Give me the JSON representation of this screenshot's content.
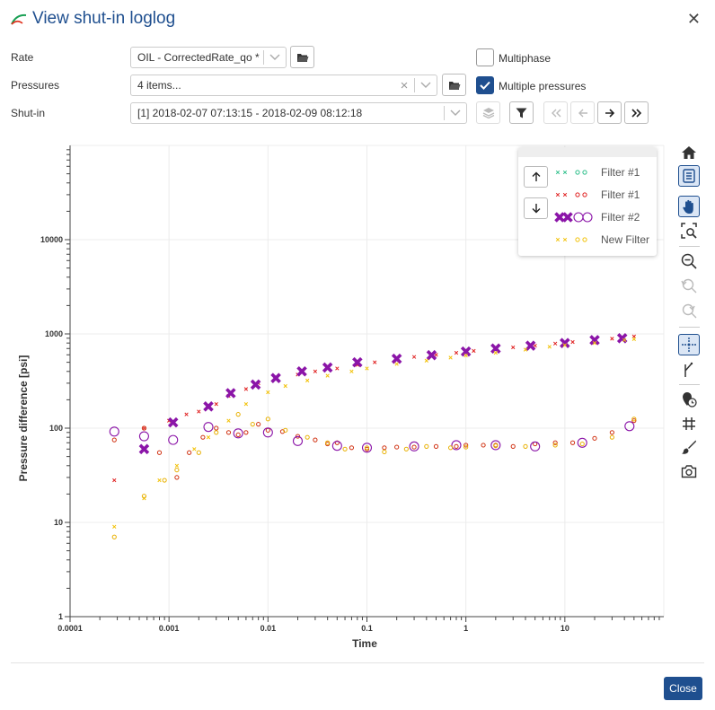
{
  "dialog": {
    "title": "View shut-in loglog",
    "close_label": "Close"
  },
  "form": {
    "rate_label": "Rate",
    "rate_value": "OIL - CorrectedRate_qo *",
    "pressures_label": "Pressures",
    "pressures_value": "4 items...",
    "shutin_label": "Shut-in",
    "shutin_value": "[1] 2018-02-07 07:13:15 - 2018-02-09 08:12:18",
    "multiphase_label": "Multiphase",
    "multiphase_checked": false,
    "multiple_pressures_label": "Multiple pressures",
    "multiple_pressures_checked": true
  },
  "legend": {
    "items": [
      {
        "label": "Filter #1",
        "color": "#2dbf8a",
        "style": "small"
      },
      {
        "label": "Filter #1",
        "color": "#e02020",
        "style": "small"
      },
      {
        "label": "Filter #2",
        "color": "#8b15a8",
        "style": "large"
      },
      {
        "label": "New Filter",
        "color": "#f2c20a",
        "style": "small"
      }
    ]
  },
  "toolbar": {
    "tools": [
      "home-icon",
      "legend-icon",
      "pan-icon",
      "zoom-box-icon",
      "zoom-out-icon",
      "undo-zoom-icon",
      "redo-zoom-icon",
      "crosshair-icon",
      "derivative-icon",
      "time-marker-icon",
      "grid-icon",
      "brush-icon",
      "camera-icon"
    ]
  },
  "chart_data": {
    "type": "scatter",
    "xscale": "log",
    "yscale": "log",
    "xlabel": "Time",
    "ylabel": "Pressure difference [psi]",
    "xlim": [
      0.0001,
      100
    ],
    "ylim": [
      1,
      100000
    ],
    "xticks": [
      "0.0001",
      "0.001",
      "0.01",
      "0.1",
      "1",
      "10"
    ],
    "yticks": [
      "1",
      "10",
      "100",
      "1000",
      "10000"
    ],
    "grid": true,
    "legend_position": "top-right",
    "series": [
      {
        "name": "Filter #1",
        "kind": "pressure",
        "color": "#e02020",
        "marker": "x-small",
        "x": [
          0.00028,
          0.00056,
          0.001,
          0.0015,
          0.002,
          0.003,
          0.004,
          0.006,
          0.008,
          0.012,
          0.02,
          0.03,
          0.05,
          0.08,
          0.12,
          0.2,
          0.3,
          0.5,
          0.8,
          1.2,
          2,
          3,
          5,
          8,
          12,
          20,
          30,
          50
        ],
        "y": [
          28,
          100,
          120,
          140,
          150,
          180,
          220,
          260,
          300,
          330,
          370,
          400,
          430,
          470,
          500,
          540,
          570,
          600,
          630,
          660,
          690,
          720,
          750,
          790,
          820,
          860,
          890,
          940
        ]
      },
      {
        "name": "Filter #1",
        "kind": "derivative",
        "color": "#d03010",
        "marker": "o-small",
        "x": [
          0.00028,
          0.00056,
          0.0008,
          0.0012,
          0.0016,
          0.0022,
          0.003,
          0.004,
          0.005,
          0.006,
          0.008,
          0.01,
          0.014,
          0.02,
          0.03,
          0.04,
          0.05,
          0.07,
          0.1,
          0.15,
          0.2,
          0.3,
          0.5,
          0.8,
          1,
          1.5,
          2,
          3,
          5,
          8,
          12,
          20,
          30,
          50
        ],
        "y": [
          75,
          100,
          55,
          30,
          55,
          80,
          100,
          90,
          85,
          90,
          110,
          95,
          92,
          82,
          75,
          68,
          70,
          62,
          60,
          62,
          63,
          63,
          64,
          64,
          66,
          66,
          66,
          64,
          68,
          70,
          70,
          78,
          90,
          120
        ]
      },
      {
        "name": "Filter #2",
        "kind": "pressure",
        "color": "#8b15a8",
        "marker": "x-large",
        "x": [
          0.00056,
          0.0011,
          0.0025,
          0.0042,
          0.0075,
          0.012,
          0.022,
          0.04,
          0.08,
          0.2,
          0.45,
          1,
          2,
          4.5,
          10,
          20,
          38
        ],
        "y": [
          60,
          115,
          170,
          235,
          290,
          340,
          400,
          440,
          500,
          545,
          595,
          650,
          700,
          750,
          800,
          860,
          900
        ]
      },
      {
        "name": "Filter #2",
        "kind": "derivative",
        "color": "#8b15a8",
        "marker": "o-large",
        "x": [
          0.00028,
          0.00056,
          0.0011,
          0.0025,
          0.005,
          0.01,
          0.02,
          0.05,
          0.1,
          0.3,
          0.8,
          2,
          5,
          15,
          45
        ],
        "y": [
          92,
          82,
          75,
          103,
          88,
          90,
          73,
          65,
          62,
          64,
          66,
          66,
          64,
          70,
          105
        ]
      },
      {
        "name": "New Filter",
        "kind": "pressure",
        "color": "#f2c20a",
        "marker": "x-small",
        "x": [
          0.00028,
          0.00056,
          0.0008,
          0.0012,
          0.0018,
          0.0025,
          0.004,
          0.006,
          0.01,
          0.015,
          0.025,
          0.04,
          0.07,
          0.1,
          0.2,
          0.4,
          0.7,
          1,
          2,
          4,
          7,
          10,
          20,
          40,
          50
        ],
        "y": [
          9,
          18,
          28,
          40,
          60,
          80,
          120,
          180,
          240,
          280,
          320,
          360,
          400,
          430,
          480,
          520,
          560,
          590,
          630,
          680,
          730,
          760,
          800,
          860,
          880
        ]
      },
      {
        "name": "New Filter",
        "kind": "derivative",
        "color": "#e8b000",
        "marker": "o-small",
        "x": [
          0.00028,
          0.00056,
          0.0009,
          0.0012,
          0.002,
          0.003,
          0.005,
          0.007,
          0.01,
          0.015,
          0.025,
          0.04,
          0.06,
          0.1,
          0.15,
          0.25,
          0.4,
          0.7,
          1,
          2,
          4,
          8,
          15,
          30,
          50
        ],
        "y": [
          7,
          19,
          28,
          36,
          55,
          90,
          140,
          110,
          125,
          95,
          80,
          70,
          60,
          62,
          56,
          60,
          64,
          62,
          63,
          65,
          64,
          66,
          68,
          80,
          125
        ]
      }
    ]
  }
}
